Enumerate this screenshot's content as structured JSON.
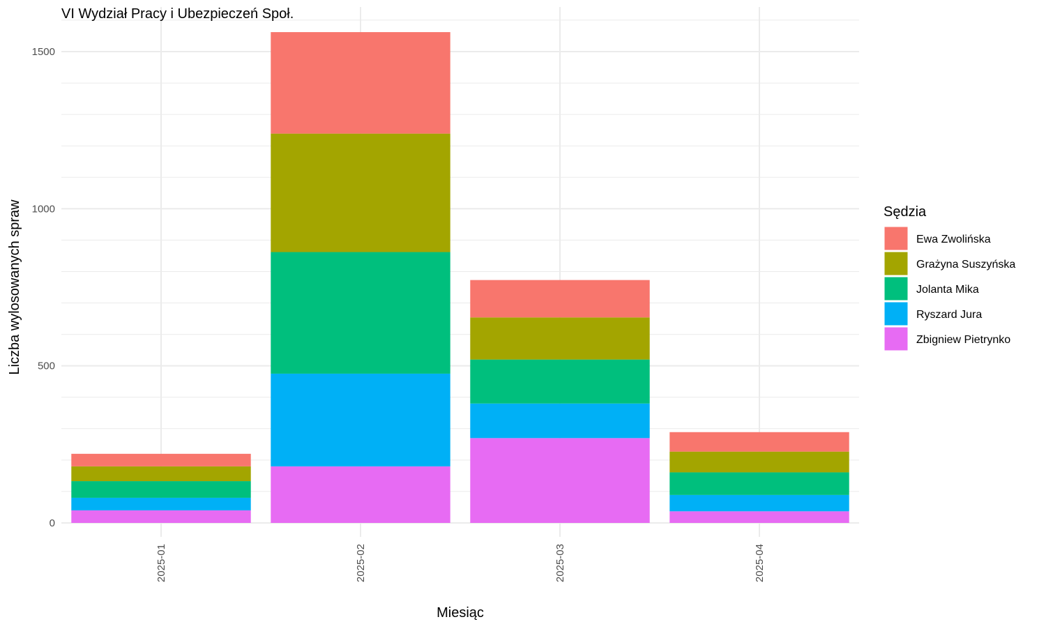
{
  "chart_data": {
    "type": "bar",
    "stacked": true,
    "title": "VI Wydział Pracy i Ubezpieczeń Społ.",
    "xlabel": "Miesiąc",
    "ylabel": "Liczba wylosowanych spraw",
    "categories": [
      "2025-01",
      "2025-02",
      "2025-03",
      "2025-04"
    ],
    "ylim": [
      0,
      1600
    ],
    "y_ticks": [
      0,
      500,
      1000,
      1500
    ],
    "grid": true,
    "legend": {
      "title": "Sędzia",
      "position": "right"
    },
    "series": [
      {
        "name": "Zbigniew Pietrynko",
        "color": "#E76BF3",
        "values": [
          40,
          180,
          270,
          37
        ]
      },
      {
        "name": "Ryszard Jura",
        "color": "#00B0F6",
        "values": [
          40,
          295,
          110,
          52
        ]
      },
      {
        "name": "Jolanta Mika",
        "color": "#00BF7D",
        "values": [
          53,
          387,
          140,
          72
        ]
      },
      {
        "name": "Grażyna Suszyńska",
        "color": "#A3A500",
        "values": [
          47,
          377,
          134,
          66
        ]
      },
      {
        "name": "Ewa Zwolińska",
        "color": "#F8766D",
        "values": [
          40,
          323,
          119,
          62
        ]
      }
    ],
    "legend_order": [
      "Ewa Zwolińska",
      "Grażyna Suszyńska",
      "Jolanta Mika",
      "Ryszard Jura",
      "Zbigniew Pietrynko"
    ]
  }
}
